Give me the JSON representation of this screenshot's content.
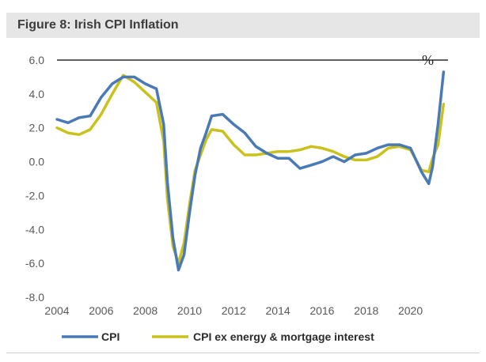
{
  "figure": {
    "title": "Figure 8: Irish CPI Inflation"
  },
  "chart_data": {
    "type": "line",
    "title": "Figure 8: Irish CPI Inflation",
    "unit_label": "%",
    "xlim": [
      2004,
      2021.7
    ],
    "ylim": [
      -8,
      6
    ],
    "x_ticks": [
      "2004",
      "2006",
      "2008",
      "2010",
      "2012",
      "2014",
      "2016",
      "2018",
      "2020"
    ],
    "y_ticks": [
      "6.0",
      "4.0",
      "2.0",
      "0.0",
      "-2.0",
      "-4.0",
      "-6.0",
      "-8.0"
    ],
    "colors": {
      "CPI": "#4a7ab5",
      "CPI ex energy & mortgage interest": "#c9c21c"
    },
    "legend_position": "bottom",
    "series": [
      {
        "name": "CPI",
        "x": [
          2004.0,
          2004.5,
          2005.0,
          2005.5,
          2006.0,
          2006.5,
          2007.0,
          2007.5,
          2008.0,
          2008.5,
          2008.83,
          2009.0,
          2009.25,
          2009.5,
          2009.75,
          2010.0,
          2010.25,
          2010.5,
          2010.75,
          2011.0,
          2011.5,
          2012.0,
          2012.5,
          2013.0,
          2013.5,
          2014.0,
          2014.5,
          2015.0,
          2015.5,
          2016.0,
          2016.5,
          2017.0,
          2017.5,
          2018.0,
          2018.5,
          2019.0,
          2019.5,
          2020.0,
          2020.5,
          2020.83,
          2021.0,
          2021.25,
          2021.5
        ],
        "values": [
          2.5,
          2.3,
          2.6,
          2.7,
          3.8,
          4.6,
          5.0,
          5.0,
          4.6,
          4.3,
          2.2,
          -1.2,
          -4.5,
          -6.4,
          -5.5,
          -3.0,
          -0.8,
          0.8,
          1.7,
          2.7,
          2.8,
          2.2,
          1.7,
          0.9,
          0.5,
          0.2,
          0.2,
          -0.4,
          -0.2,
          0.0,
          0.3,
          0.0,
          0.4,
          0.5,
          0.8,
          1.0,
          1.0,
          0.8,
          -0.6,
          -1.3,
          -0.3,
          2.2,
          5.3
        ]
      },
      {
        "name": "CPI ex energy & mortgage interest",
        "x": [
          2004.0,
          2004.5,
          2005.0,
          2005.5,
          2006.0,
          2006.5,
          2007.0,
          2007.5,
          2008.0,
          2008.5,
          2008.83,
          2009.0,
          2009.25,
          2009.5,
          2009.75,
          2010.0,
          2010.25,
          2010.5,
          2010.75,
          2011.0,
          2011.5,
          2012.0,
          2012.5,
          2013.0,
          2013.5,
          2014.0,
          2014.5,
          2015.0,
          2015.5,
          2016.0,
          2016.5,
          2017.0,
          2017.5,
          2018.0,
          2018.5,
          2019.0,
          2019.5,
          2020.0,
          2020.5,
          2020.83,
          2021.0,
          2021.25,
          2021.5
        ],
        "values": [
          2.0,
          1.7,
          1.6,
          1.9,
          2.8,
          4.0,
          5.1,
          4.7,
          4.1,
          3.5,
          1.2,
          -2.2,
          -5.0,
          -6.0,
          -4.8,
          -2.5,
          -0.5,
          0.4,
          1.3,
          1.9,
          1.8,
          1.0,
          0.4,
          0.4,
          0.5,
          0.6,
          0.6,
          0.7,
          0.9,
          0.8,
          0.6,
          0.3,
          0.1,
          0.1,
          0.3,
          0.8,
          0.9,
          0.7,
          -0.5,
          -0.6,
          0.2,
          1.0,
          3.4
        ]
      }
    ]
  }
}
